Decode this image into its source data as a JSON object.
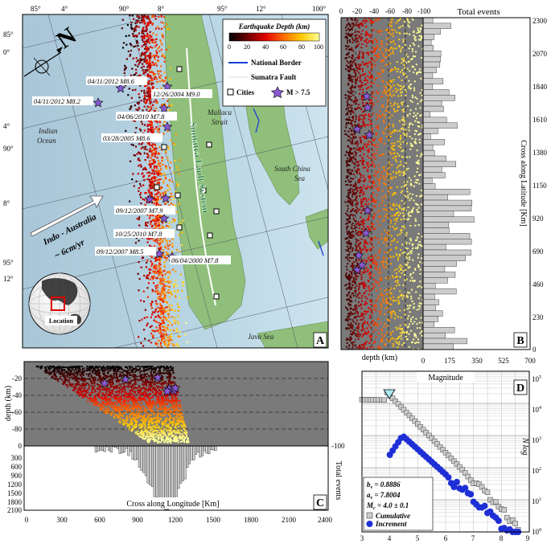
{
  "panelA": {
    "label": "A",
    "lat_ticks": [
      "8°",
      "4°",
      "0°",
      "4°",
      "8°",
      "12°"
    ],
    "lon_ticks_top": [
      "85°",
      "4°",
      "90°",
      "8°",
      "95°",
      "12°",
      "100°"
    ],
    "lon_ticks_left": [
      "85°",
      "0°",
      "4°",
      "90°",
      "8°",
      "95°",
      "12°"
    ],
    "legend": {
      "title": "Earthquake Depth (km)",
      "ticks": [
        "0",
        "20",
        "40",
        "60",
        "80",
        "100"
      ],
      "items": [
        "National Border",
        "Sumatra Fault",
        "Cities",
        "M > 7.5"
      ],
      "colors": {
        "border": "#1a3fd6",
        "fault": "#ffffff",
        "star": "#8b5bd6"
      }
    },
    "events": [
      "04/11/2012 M8.6",
      "04/11/2012 M8.2",
      "12/26/2004 M9.0",
      "04/06/2010 M7.8",
      "03/28/2005 M8.6",
      "09/12/2007 M7.9",
      "10/25/2010 M7.8",
      "09/12/2007 M8.5",
      "06/04/2000 M7.8"
    ],
    "places": [
      "Indian Ocean",
      "Mallaca Strait",
      "South China Sea",
      "Java Sea"
    ],
    "fault_label": "Sumatra Fault System",
    "plate_label": "Indo - Australia",
    "plate_rate": "~ 6cm/yr",
    "north": "N",
    "inset_label": "Location"
  },
  "panelB": {
    "label": "B",
    "top_ticks": [
      "0",
      "-20",
      "-40",
      "-60",
      "-80",
      "-100"
    ],
    "top_title": "Total events",
    "bottom_ticks": [
      "0",
      "175",
      "350",
      "525",
      "700"
    ],
    "bottom_title": "depth (km)",
    "right_ticks": [
      "2300",
      "2070",
      "1840",
      "1610",
      "1380",
      "1150",
      "920",
      "690",
      "460",
      "230",
      "0"
    ],
    "right_title": "Cross along Latitude [Km]"
  },
  "panelC": {
    "label": "C",
    "left_ticks_top": [
      "-20",
      "-40",
      "-60",
      "-80"
    ],
    "left_title": "depth (km)",
    "left_ticks_bottom": [
      "0",
      "300",
      "600",
      "900",
      "1200",
      "1500",
      "1800",
      "2100"
    ],
    "right_ticks_top": [
      "-100"
    ],
    "right_title": "Total events",
    "bottom_ticks": [
      "0",
      "300",
      "600",
      "900",
      "1200",
      "1500",
      "1800",
      "2100",
      "2400"
    ],
    "bottom_title": "Cross along Longitude [Km]"
  },
  "panelD": {
    "label": "D",
    "top_title": "Magnitude",
    "y_ticks": [
      "10",
      "10",
      "10",
      "10",
      "10",
      "10"
    ],
    "y_exp": [
      "5",
      "4",
      "3",
      "2",
      "1",
      "0"
    ],
    "y_title": "log",
    "y_title_sub": "N",
    "x_ticks": [
      "3",
      "4",
      "5",
      "6",
      "7",
      "8",
      "9"
    ],
    "stats": {
      "b": "b",
      "b_sub": "v",
      "b_val": " = 0.8886",
      "a": "a",
      "a_sub": "v",
      "a_val": " = 7.8004",
      "m": "M",
      "m_sub": "c",
      "m_val": " = 4.0 ± 0.1"
    },
    "legend": [
      "Cumulative",
      "Increment"
    ],
    "colors": {
      "increment": "#1f2fd6",
      "cumulative": "#cccccc",
      "mc": "#a8e8f0"
    }
  }
}
